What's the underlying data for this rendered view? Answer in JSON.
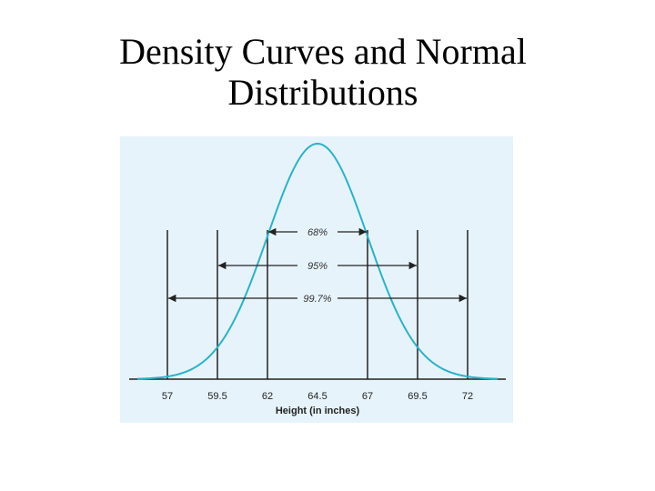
{
  "slide": {
    "title_line1": "Density Curves and Normal",
    "title_line2": "Distributions"
  },
  "diagram": {
    "x_axis_label": "Height (in inches)",
    "mean": 64.5,
    "sd": 2.5,
    "tick_labels": [
      "57",
      "59.5",
      "62",
      "64.5",
      "67",
      "69.5",
      "72"
    ],
    "ranges": [
      {
        "label": "68%",
        "low": 62,
        "high": 67
      },
      {
        "label": "95%",
        "low": 59.5,
        "high": 69.5
      },
      {
        "label": "99.7%",
        "low": 57,
        "high": 72
      }
    ],
    "colors": {
      "panel_background": "#e6f3fb",
      "curve": "#2ab3c9",
      "lines": "#222222"
    }
  }
}
